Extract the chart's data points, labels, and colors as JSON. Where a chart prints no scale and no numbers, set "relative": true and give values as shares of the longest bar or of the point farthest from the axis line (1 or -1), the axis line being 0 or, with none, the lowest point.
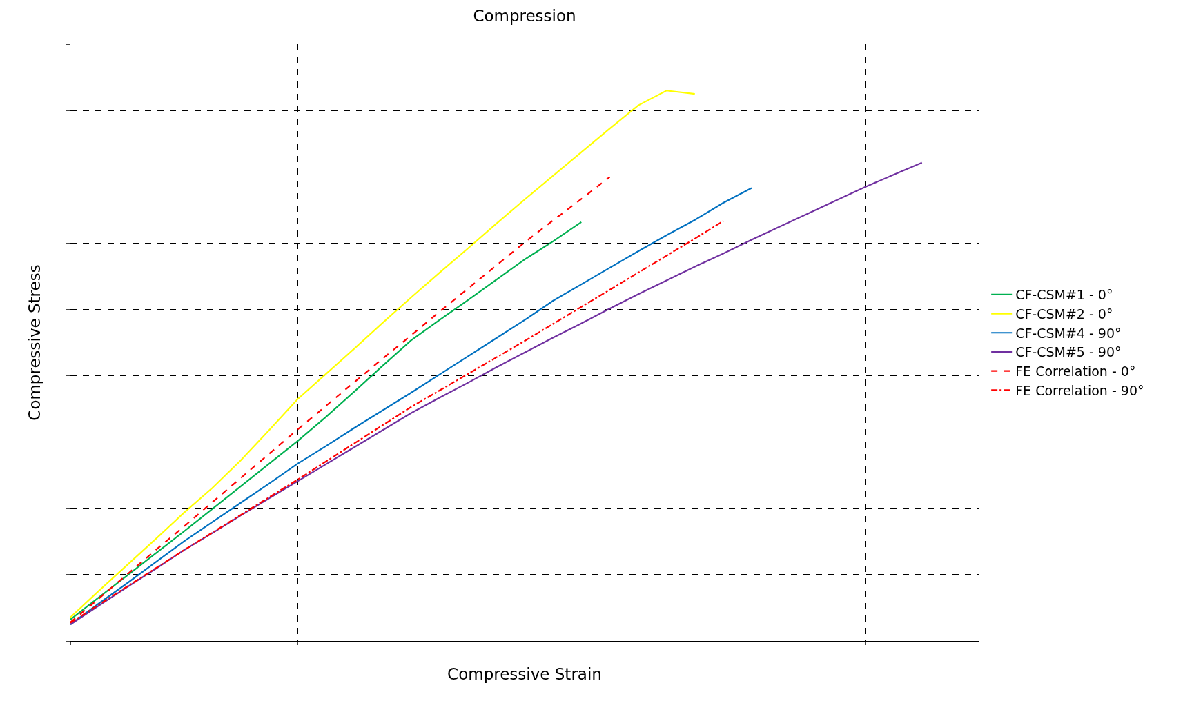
{
  "chart_data": {
    "type": "line",
    "title": "Compression",
    "xlabel": "Compressive Strain",
    "ylabel": "Compressive Stress",
    "relative": true,
    "categories": [
      null,
      null,
      null,
      null,
      null,
      null,
      null,
      null,
      null,
      null,
      null,
      null,
      null,
      null,
      null,
      null,
      null,
      null,
      null,
      null,
      null,
      null,
      null,
      null,
      null,
      null,
      null,
      null,
      null,
      null,
      null,
      null,
      null
    ],
    "grid": true,
    "legend": "right",
    "marker": "none",
    "series": [
      {
        "name": "CF-CSM#1 - 0°",
        "color": "#00b050",
        "line_style": "solid",
        "values": [
          0.039,
          0.079,
          0.119,
          0.159,
          0.199,
          0.24,
          0.281,
          0.322,
          0.363,
          0.407,
          0.453,
          0.5,
          0.546,
          0.583,
          0.619,
          0.656,
          0.693,
          0.726,
          0.761,
          null,
          null,
          null,
          null,
          null,
          null,
          null,
          null,
          null,
          null,
          null,
          null,
          null,
          null
        ]
      },
      {
        "name": "CF-CSM#2 - 0°",
        "color": "#ffff00",
        "line_style": "solid",
        "values": [
          0.043,
          0.091,
          0.138,
          0.185,
          0.233,
          0.278,
          0.328,
          0.383,
          0.439,
          0.485,
          0.531,
          0.578,
          0.624,
          0.669,
          0.713,
          0.758,
          0.802,
          0.845,
          0.888,
          0.931,
          0.973,
          1.0,
          0.994,
          null,
          null,
          null,
          null,
          null,
          null,
          null,
          null,
          null,
          null
        ]
      },
      {
        "name": "CF-CSM#4 - 90°",
        "color": "#0070c0",
        "line_style": "solid",
        "values": [
          0.03,
          0.068,
          0.105,
          0.143,
          0.181,
          0.216,
          0.251,
          0.286,
          0.322,
          0.354,
          0.387,
          0.419,
          0.451,
          0.484,
          0.517,
          0.55,
          0.583,
          0.618,
          0.648,
          0.678,
          0.708,
          0.737,
          0.765,
          0.796,
          0.823,
          null,
          null,
          null,
          null,
          null,
          null,
          null,
          null
        ]
      },
      {
        "name": "CF-CSM#5 - 90°",
        "color": "#7030a0",
        "line_style": "solid",
        "values": [
          0.03,
          0.064,
          0.098,
          0.131,
          0.165,
          0.196,
          0.228,
          0.259,
          0.29,
          0.321,
          0.352,
          0.383,
          0.414,
          0.442,
          0.469,
          0.497,
          0.524,
          0.551,
          0.577,
          0.604,
          0.63,
          0.655,
          0.68,
          0.704,
          0.729,
          0.753,
          0.777,
          0.801,
          0.825,
          0.847,
          0.869,
          null,
          null
        ]
      },
      {
        "name": "FE Correlation - 0°",
        "color": "#ff0000",
        "line_style": "dashed",
        "values": [
          0.034,
          0.077,
          0.121,
          0.165,
          0.208,
          0.252,
          0.296,
          0.34,
          0.384,
          0.427,
          0.47,
          0.513,
          0.555,
          0.598,
          0.64,
          0.682,
          0.724,
          0.764,
          0.803,
          0.843,
          null,
          null,
          null,
          null,
          null,
          null,
          null,
          null,
          null,
          null,
          null,
          null,
          null
        ]
      },
      {
        "name": "FE Correlation - 90°",
        "color": "#ff0000",
        "line_style": "dashdot",
        "values": [
          0.033,
          0.066,
          0.099,
          0.132,
          0.165,
          0.197,
          0.229,
          0.261,
          0.293,
          0.326,
          0.359,
          0.392,
          0.425,
          0.455,
          0.485,
          0.515,
          0.545,
          0.576,
          0.607,
          0.638,
          0.669,
          0.7,
          0.731,
          0.763,
          null,
          null,
          null,
          null,
          null,
          null,
          null,
          null,
          null
        ]
      }
    ]
  }
}
